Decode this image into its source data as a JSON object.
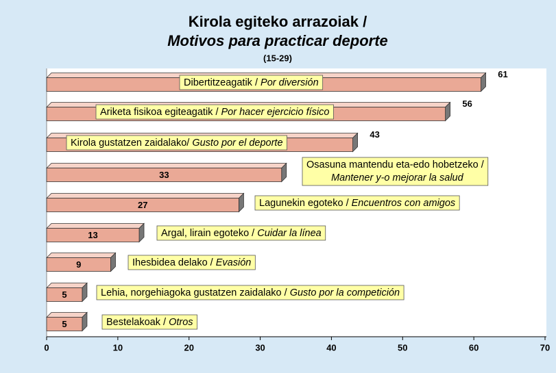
{
  "chart_data": {
    "type": "bar",
    "orientation": "horizontal",
    "title": "Kirola egiteko arrazoiak /",
    "subtitle": "Motivos para practicar deporte",
    "note": "(15-29)",
    "categories": [
      "Dibertitzeagatik / ",
      "Ariketa fisikoa egiteagatik / ",
      "Kirola gustatzen zaidalako/ ",
      "Osasuna mantendu eta-edo hobetzeko /",
      "Lagunekin egoteko / ",
      "Argal, lirain egoteko / ",
      "Ihesbidea delako / ",
      "Lehia, norgehiagoka gustatzen zaidalako / ",
      "Bestelakoak / "
    ],
    "categories_es": [
      "Por diversión",
      "Por hacer ejercicio físico",
      "Gusto por el deporte",
      "Mantener y-o mejorar la salud",
      "Encuentros con amigos",
      "Cuidar la línea",
      "Evasión",
      "Gusto por la competición",
      "Otros"
    ],
    "values": [
      61,
      56,
      43,
      33,
      27,
      13,
      9,
      5,
      5
    ],
    "color": "#eaa996",
    "xlim": [
      0,
      70
    ],
    "xticks": [
      0,
      10,
      20,
      30,
      40,
      50,
      60,
      70
    ]
  }
}
